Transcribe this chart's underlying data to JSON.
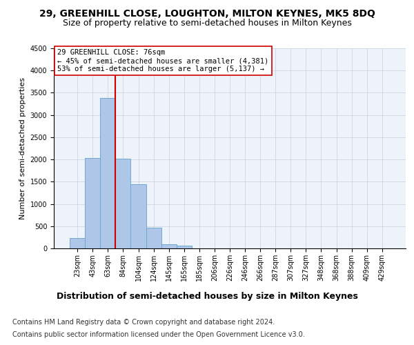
{
  "title": "29, GREENHILL CLOSE, LOUGHTON, MILTON KEYNES, MK5 8DQ",
  "subtitle": "Size of property relative to semi-detached houses in Milton Keynes",
  "xlabel": "Distribution of semi-detached houses by size in Milton Keynes",
  "ylabel": "Number of semi-detached properties",
  "categories": [
    "23sqm",
    "43sqm",
    "63sqm",
    "84sqm",
    "104sqm",
    "124sqm",
    "145sqm",
    "165sqm",
    "185sqm",
    "206sqm",
    "226sqm",
    "246sqm",
    "266sqm",
    "287sqm",
    "307sqm",
    "327sqm",
    "348sqm",
    "368sqm",
    "388sqm",
    "409sqm",
    "429sqm"
  ],
  "values": [
    230,
    2030,
    3380,
    2020,
    1450,
    470,
    100,
    60,
    0,
    0,
    0,
    0,
    0,
    0,
    0,
    0,
    0,
    0,
    0,
    0,
    0
  ],
  "bar_color": "#aec6e8",
  "bar_edge_color": "#6fa8d6",
  "vline_color": "#cc0000",
  "annotation_text": "29 GREENHILL CLOSE: 76sqm\n← 45% of semi-detached houses are smaller (4,381)\n53% of semi-detached houses are larger (5,137) →",
  "annotation_box_color": "#ffffff",
  "annotation_box_edge": "#cc0000",
  "ylim": [
    0,
    4500
  ],
  "yticks": [
    0,
    500,
    1000,
    1500,
    2000,
    2500,
    3000,
    3500,
    4000,
    4500
  ],
  "footer1": "Contains HM Land Registry data © Crown copyright and database right 2024.",
  "footer2": "Contains public sector information licensed under the Open Government Licence v3.0.",
  "bg_color": "#eef2f9",
  "fig_bg_color": "#ffffff",
  "title_fontsize": 10,
  "subtitle_fontsize": 9,
  "xlabel_fontsize": 9,
  "ylabel_fontsize": 8,
  "tick_fontsize": 7,
  "annotation_fontsize": 7.5,
  "footer_fontsize": 7
}
